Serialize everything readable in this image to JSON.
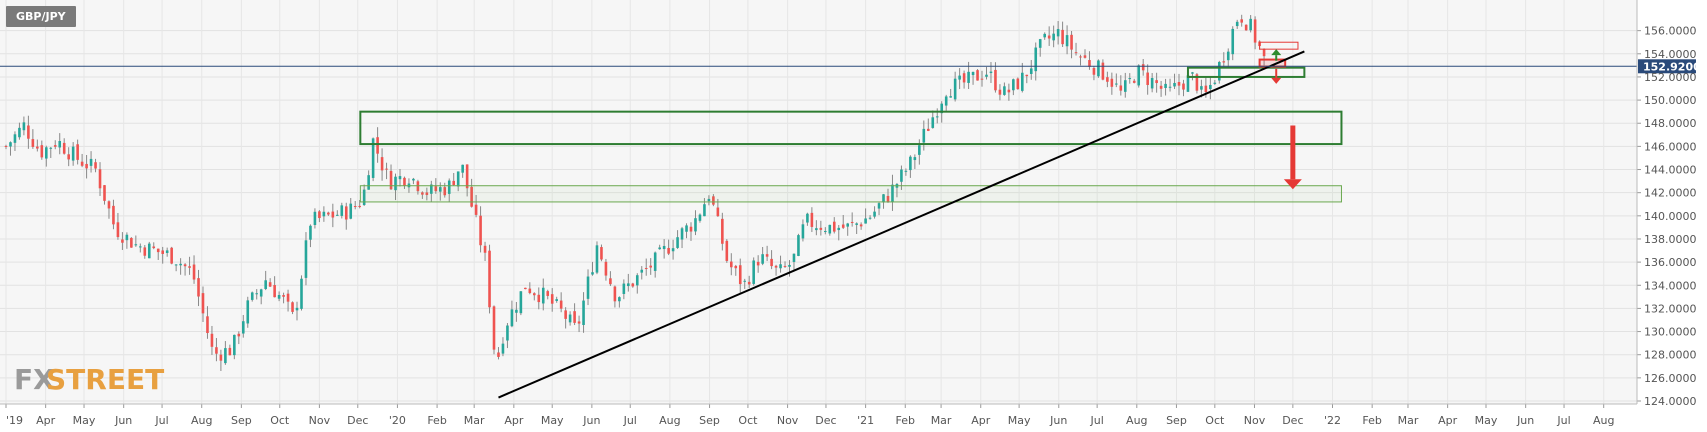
{
  "symbol": "GBP/JPY",
  "watermark": {
    "fx": "FX",
    "street": "STREET",
    "fx_color": "#9a9a9a",
    "street_color": "#e8a040"
  },
  "colors": {
    "up": "#26a69a",
    "down": "#ef5350",
    "zone_green": "#2e7d32",
    "zone_red": "#e53935",
    "trendline": "#000000",
    "price_line": "#2a4a7a",
    "price_badge": "#2a4a7a"
  },
  "chart_data": {
    "type": "candlestick",
    "title": "GBP/JPY",
    "current_price": "152.9200",
    "current_price_value": 152.92,
    "ylim": [
      124,
      158
    ],
    "y_ticks": [
      "124.0000",
      "126.0000",
      "128.0000",
      "130.0000",
      "132.0000",
      "134.0000",
      "136.0000",
      "138.0000",
      "140.0000",
      "142.0000",
      "144.0000",
      "146.0000",
      "148.0000",
      "150.0000",
      "152.0000",
      "154.0000",
      "156.0000"
    ],
    "x_ticks": [
      "'19",
      "Apr",
      "May",
      "Jun",
      "Jul",
      "Aug",
      "Sep",
      "Oct",
      "Nov",
      "Dec",
      "'20",
      "Feb",
      "Mar",
      "Apr",
      "May",
      "Jun",
      "Jul",
      "Aug",
      "Sep",
      "Oct",
      "Nov",
      "Dec",
      "'21",
      "Feb",
      "Mar",
      "Apr",
      "May",
      "Jun",
      "Jul",
      "Aug",
      "Sep",
      "Oct",
      "Nov",
      "Dec",
      "'22",
      "Feb",
      "Mar",
      "Apr",
      "May",
      "Jun",
      "Jul",
      "Aug"
    ],
    "x_range_days": [
      "2019-03-01",
      "2022-08-20"
    ],
    "close_path": [
      [
        "2019-03-01",
        146.0
      ],
      [
        "2019-03-15",
        147.8
      ],
      [
        "2019-03-28",
        145.5
      ],
      [
        "2019-04-10",
        146.5
      ],
      [
        "2019-04-25",
        145.0
      ],
      [
        "2019-05-10",
        144.0
      ],
      [
        "2019-05-25",
        139.0
      ],
      [
        "2019-06-10",
        137.5
      ],
      [
        "2019-06-25",
        137.0
      ],
      [
        "2019-07-10",
        136.5
      ],
      [
        "2019-07-25",
        135.0
      ],
      [
        "2019-08-10",
        128.0
      ],
      [
        "2019-08-25",
        128.5
      ],
      [
        "2019-09-05",
        132.0
      ],
      [
        "2019-09-20",
        134.5
      ],
      [
        "2019-10-05",
        132.5
      ],
      [
        "2019-10-12",
        131.0
      ],
      [
        "2019-10-25",
        139.5
      ],
      [
        "2019-11-10",
        140.0
      ],
      [
        "2019-11-25",
        140.5
      ],
      [
        "2019-12-05",
        141.5
      ],
      [
        "2019-12-13",
        146.5
      ],
      [
        "2019-12-25",
        143.0
      ],
      [
        "2020-01-10",
        143.5
      ],
      [
        "2020-01-25",
        142.0
      ],
      [
        "2020-02-10",
        142.5
      ],
      [
        "2020-02-20",
        144.5
      ],
      [
        "2020-03-01",
        140.0
      ],
      [
        "2020-03-10",
        136.0
      ],
      [
        "2020-03-18",
        127.0
      ],
      [
        "2020-03-25",
        130.5
      ],
      [
        "2020-04-10",
        134.0
      ],
      [
        "2020-04-25",
        133.0
      ],
      [
        "2020-05-10",
        131.5
      ],
      [
        "2020-05-20",
        130.0
      ],
      [
        "2020-06-05",
        137.5
      ],
      [
        "2020-06-20",
        133.0
      ],
      [
        "2020-07-05",
        134.5
      ],
      [
        "2020-07-20",
        136.0
      ],
      [
        "2020-08-05",
        138.0
      ],
      [
        "2020-08-20",
        139.5
      ],
      [
        "2020-09-01",
        142.0
      ],
      [
        "2020-09-15",
        136.0
      ],
      [
        "2020-09-28",
        134.0
      ],
      [
        "2020-10-10",
        136.5
      ],
      [
        "2020-10-25",
        135.0
      ],
      [
        "2020-11-05",
        136.0
      ],
      [
        "2020-11-15",
        139.5
      ],
      [
        "2020-12-05",
        139.0
      ],
      [
        "2020-12-20",
        139.0
      ],
      [
        "2021-01-05",
        140.0
      ],
      [
        "2021-01-20",
        142.0
      ],
      [
        "2021-02-05",
        144.5
      ],
      [
        "2021-02-20",
        148.0
      ],
      [
        "2021-03-05",
        151.0
      ],
      [
        "2021-03-20",
        151.5
      ],
      [
        "2021-04-05",
        152.5
      ],
      [
        "2021-04-20",
        150.5
      ],
      [
        "2021-05-05",
        152.0
      ],
      [
        "2021-05-20",
        155.0
      ],
      [
        "2021-06-01",
        155.8
      ],
      [
        "2021-06-15",
        154.0
      ],
      [
        "2021-06-28",
        153.0
      ],
      [
        "2021-07-10",
        152.0
      ],
      [
        "2021-07-20",
        150.5
      ],
      [
        "2021-08-01",
        152.5
      ],
      [
        "2021-08-15",
        151.5
      ],
      [
        "2021-08-25",
        150.5
      ],
      [
        "2021-09-05",
        151.5
      ],
      [
        "2021-09-15",
        152.0
      ],
      [
        "2021-09-22",
        150.0
      ],
      [
        "2021-10-01",
        152.0
      ],
      [
        "2021-10-10",
        154.5
      ],
      [
        "2021-10-20",
        157.5
      ],
      [
        "2021-10-28",
        156.5
      ],
      [
        "2021-11-05",
        154.5
      ],
      [
        "2021-11-10",
        153.0
      ]
    ],
    "trendline": {
      "from": [
        "2020-03-20",
        124.3
      ],
      "to": [
        "2021-12-10",
        154.2
      ]
    },
    "zones": [
      {
        "name": "upper-resistance-support-zone",
        "from": "2019-12-03",
        "to": "2022-01-08",
        "low": 146.2,
        "high": 149.0,
        "style": "green-thick"
      },
      {
        "name": "lower-target-zone",
        "from": "2019-12-03",
        "to": "2022-01-08",
        "low": 141.2,
        "high": 142.6,
        "style": "green-thin"
      },
      {
        "name": "near-support-zone",
        "from": "2021-09-10",
        "to": "2021-12-10",
        "low": 152.0,
        "high": 152.8,
        "style": "green-thick"
      },
      {
        "name": "red-target-box",
        "from": "2021-11-05",
        "to": "2021-12-05",
        "low": 154.4,
        "high": 155.0,
        "style": "red-thin"
      },
      {
        "name": "red-current-box",
        "from": "2021-11-05",
        "to": "2021-11-25",
        "low": 152.9,
        "high": 153.5,
        "style": "red-thick"
      }
    ],
    "arrows": [
      {
        "name": "up-arrow",
        "date": "2021-11-18",
        "from": 153.4,
        "to": 154.4,
        "color": "green"
      },
      {
        "name": "down-arrow-small",
        "date": "2021-11-18",
        "from": 152.7,
        "to": 151.4,
        "color": "red"
      },
      {
        "name": "down-arrow-large",
        "date": "2021-12-01",
        "from": 147.8,
        "to": 142.3,
        "color": "red"
      }
    ]
  }
}
